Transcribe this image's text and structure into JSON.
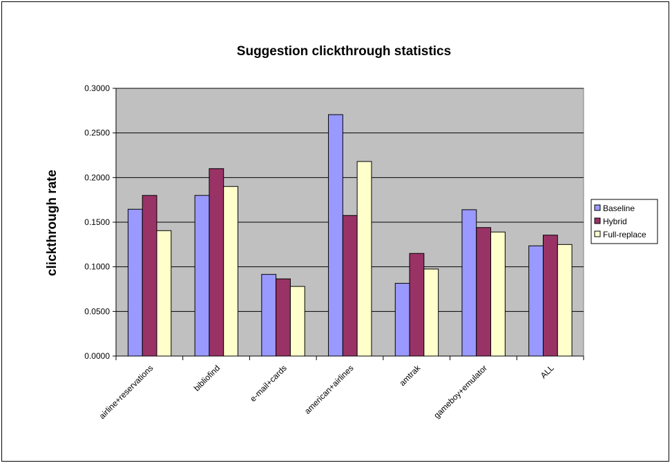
{
  "chart_data": {
    "type": "bar",
    "title": "Suggestion clickthrough statistics",
    "xlabel": "",
    "ylabel": "clickthrough rate",
    "ylim": [
      0,
      0.3
    ],
    "yticks": [
      "0.0000",
      "0.0500",
      "0.1000",
      "0.1500",
      "0.2000",
      "0.2500",
      "0.3000"
    ],
    "grid": true,
    "legend_position": "right",
    "categories": [
      "airline+reservations",
      "bibliofind",
      "e-mail+cards",
      "american+airlines",
      "amtrak",
      "gameboy+emulator",
      "ALL"
    ],
    "series": [
      {
        "name": "Baseline",
        "color": "#9999ff",
        "values": [
          0.1645,
          0.18,
          0.0915,
          0.2705,
          0.0815,
          0.164,
          0.1235
        ]
      },
      {
        "name": "Hybrid",
        "color": "#993366",
        "values": [
          0.18,
          0.21,
          0.0865,
          0.1575,
          0.115,
          0.144,
          0.1355
        ]
      },
      {
        "name": "Full-replace",
        "color": "#ffffcc",
        "values": [
          0.1405,
          0.19,
          0.078,
          0.218,
          0.0975,
          0.139,
          0.125
        ]
      }
    ]
  },
  "colors": {
    "plot_background": "#c0c0c0",
    "gridline": "#000000"
  }
}
